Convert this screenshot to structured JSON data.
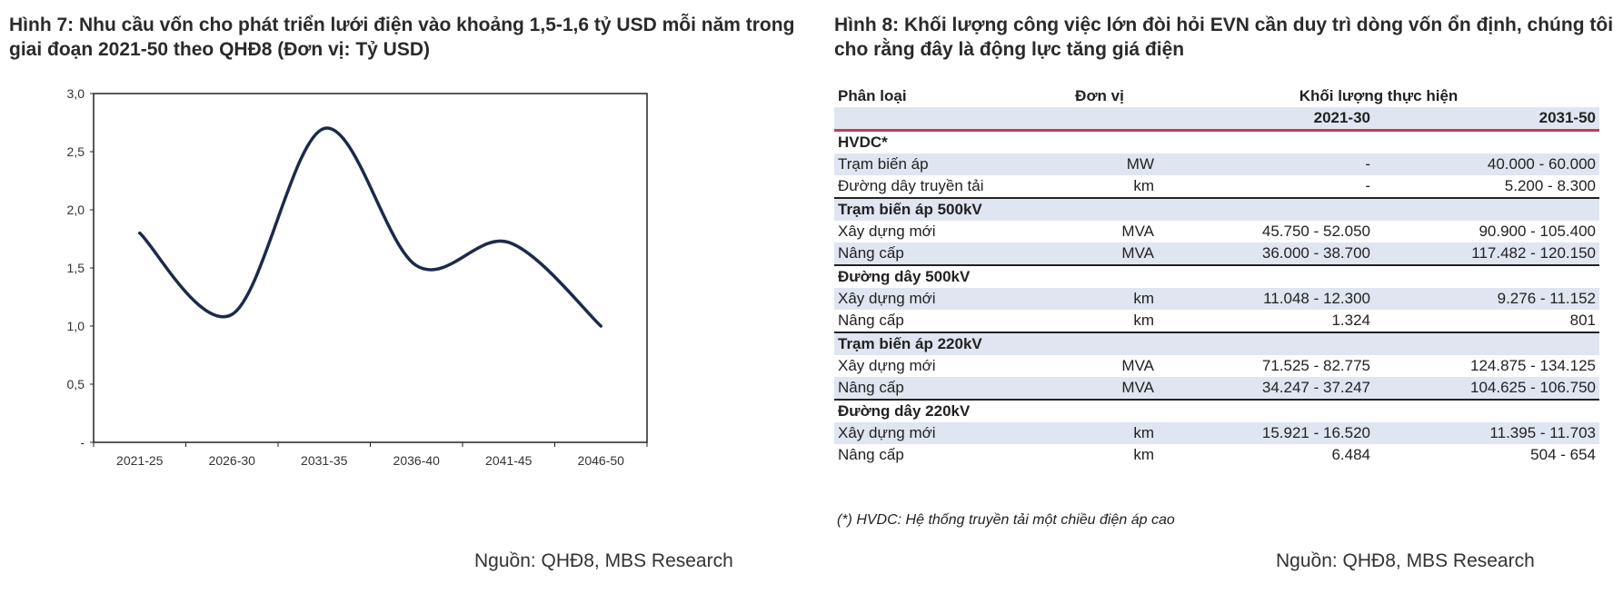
{
  "figure7": {
    "title": "Hình 7: Nhu cầu vốn cho phát triển lưới điện vào khoảng 1,5-1,6 tỷ USD mỗi năm trong giai đoạn 2021-50 theo QHĐ8 (Đơn vị: Tỷ USD)",
    "source": "Nguồn: QHĐ8, MBS Research"
  },
  "chart_data": {
    "type": "line",
    "categories": [
      "2021-25",
      "2026-30",
      "2031-35",
      "2036-40",
      "2041-45",
      "2046-50"
    ],
    "values": [
      1.8,
      1.1,
      2.7,
      1.52,
      1.72,
      1.0
    ],
    "ylim": [
      0,
      3.0
    ],
    "yticks": [
      "-",
      "0,5",
      "1,0",
      "1,5",
      "2,0",
      "2,5",
      "3,0"
    ],
    "ytick_values": [
      0,
      0.5,
      1.0,
      1.5,
      2.0,
      2.5,
      3.0
    ],
    "smooth": true,
    "grid": false,
    "line_color": "#1c2a4a"
  },
  "figure8": {
    "title": "Hình 8: Khối lượng công việc lớn đòi hỏi EVN cần duy trì dòng vốn ổn định, chúng tôi cho rằng đây là động lực tăng giá điện",
    "headers": {
      "category": "Phân loại",
      "unit": "Đơn vị",
      "volume": "Khối lượng thực hiện",
      "p1": "2021-30",
      "p2": "2031-50"
    },
    "groups": [
      {
        "name": "HVDC*",
        "rows": [
          {
            "label": "Trạm biến áp",
            "unit": "MW",
            "p1": "-",
            "p2": "40.000 - 60.000"
          },
          {
            "label": "Đường dây truyền tải",
            "unit": "km",
            "p1": "-",
            "p2": "5.200 - 8.300"
          }
        ]
      },
      {
        "name": "Trạm biến áp 500kV",
        "rows": [
          {
            "label": "Xây dựng mới",
            "unit": "MVA",
            "p1": "45.750 - 52.050",
            "p2": "90.900 - 105.400"
          },
          {
            "label": "Nâng cấp",
            "unit": "MVA",
            "p1": "36.000 - 38.700",
            "p2": "117.482 - 120.150"
          }
        ]
      },
      {
        "name": "Đường dây 500kV",
        "rows": [
          {
            "label": "Xây dựng mới",
            "unit": "km",
            "p1": "11.048 - 12.300",
            "p2": "9.276 - 11.152"
          },
          {
            "label": "Nâng cấp",
            "unit": "km",
            "p1": "1.324",
            "p2": "801"
          }
        ]
      },
      {
        "name": "Trạm biến áp 220kV",
        "rows": [
          {
            "label": "Xây dựng mới",
            "unit": "MVA",
            "p1": "71.525 - 82.775",
            "p2": "124.875 - 134.125"
          },
          {
            "label": "Nâng cấp",
            "unit": "MVA",
            "p1": "34.247 - 37.247",
            "p2": "104.625 - 106.750"
          }
        ]
      },
      {
        "name": "Đường dây 220kV",
        "rows": [
          {
            "label": "Xây dựng mới",
            "unit": "km",
            "p1": "15.921 - 16.520",
            "p2": "11.395 - 11.703"
          },
          {
            "label": "Nâng cấp",
            "unit": "km",
            "p1": "6.484",
            "p2": "504 - 654"
          }
        ]
      }
    ],
    "footnote": "(*) HVDC: Hệ thống truyền tải một chiều điện áp cao",
    "source": "Nguồn: QHĐ8, MBS Research",
    "shade_color": "#dfe5f1",
    "header_rule_color": "#c33d52"
  }
}
